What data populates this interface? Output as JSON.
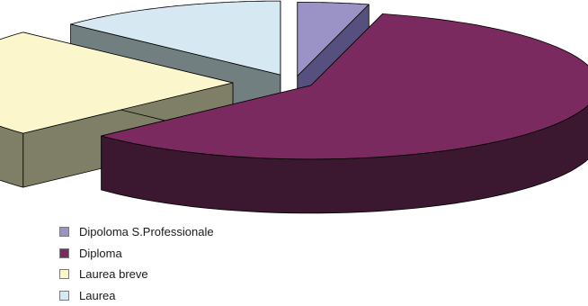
{
  "chart_data": {
    "type": "pie",
    "variant": "3d-exploded",
    "categories": [
      "Dipoloma S.Professionale",
      "Diploma",
      "Laurea breve",
      "Laurea"
    ],
    "values": [
      4,
      59,
      24,
      13
    ],
    "colors": [
      "#9b93c6",
      "#7a2a5e",
      "#fbf6cc",
      "#d6e8f2"
    ],
    "side_colors": [
      "#55507e",
      "#3c1830",
      "#7e7f66",
      "#727f81"
    ],
    "legend_position": "bottom-left"
  }
}
